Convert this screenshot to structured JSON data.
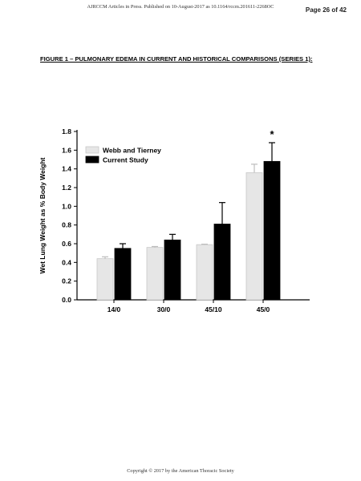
{
  "page_header": {
    "journal_note": "AJRCCM Articles in Press. Published on 10-August-2017 as 10.1164/rccm.201611-2268OC",
    "page_number": "Page 26 of 42"
  },
  "figure": {
    "caption": "FIGURE 1 – PULMONARY EDEMA IN CURRENT AND HISTORICAL COMPARISONS (SERIES 1):"
  },
  "footer": {
    "copyright": "Copyright © 2017 by the American Thoracic Society"
  },
  "colors": {
    "webb": "#e6e6e6",
    "current": "#000000",
    "axis": "#000000"
  },
  "chart_data": {
    "type": "bar",
    "title": "",
    "xlabel": "",
    "ylabel": "Wet Lung Weight as % Body Weight",
    "ylim": [
      0,
      1.8
    ],
    "yticks": [
      "0.0",
      "0.2",
      "0.4",
      "0.6",
      "0.8",
      "1.0",
      "1.2",
      "1.4",
      "1.6",
      "1.8"
    ],
    "categories": [
      "14/0",
      "30/0",
      "45/10",
      "45/0"
    ],
    "series": [
      {
        "name": "Webb and Tierney",
        "values": [
          0.44,
          0.56,
          0.59,
          1.36
        ],
        "errors": [
          0.02,
          0.01,
          0.005,
          0.09
        ]
      },
      {
        "name": "Current Study",
        "values": [
          0.55,
          0.64,
          0.81,
          1.48
        ],
        "errors": [
          0.05,
          0.06,
          0.23,
          0.2
        ]
      }
    ],
    "annotations": [
      {
        "category": "45/0",
        "series": "Current Study",
        "text": "*"
      }
    ],
    "legend": "top-left",
    "grid": false
  }
}
